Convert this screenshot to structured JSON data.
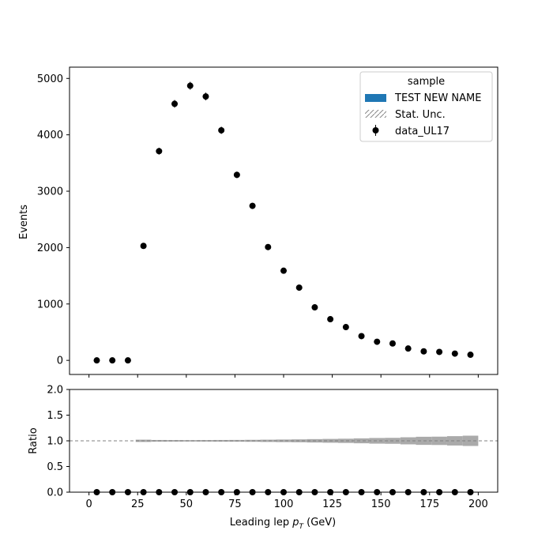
{
  "chart_data": {
    "type": "scatter",
    "x": [
      4,
      12,
      20,
      28,
      36,
      44,
      52,
      60,
      68,
      76,
      84,
      92,
      100,
      108,
      116,
      124,
      132,
      140,
      148,
      156,
      164,
      172,
      180,
      188,
      196
    ],
    "series": [
      {
        "name": "data_UL17",
        "values": [
          0,
          0,
          0,
          2030,
          3710,
          4550,
          4870,
          4680,
          4080,
          3290,
          2740,
          2010,
          1590,
          1290,
          940,
          730,
          590,
          430,
          330,
          300,
          210,
          160,
          150,
          120,
          100
        ],
        "ratio": [
          0,
          0,
          0,
          0,
          0,
          0,
          0,
          0,
          0,
          0,
          0,
          0,
          0,
          0,
          0,
          0,
          0,
          0,
          0,
          0,
          0,
          0,
          0,
          0,
          0
        ]
      }
    ],
    "stat_unc_band": {
      "x_edges": [
        24,
        32,
        40,
        48,
        56,
        64,
        72,
        80,
        88,
        96,
        104,
        112,
        120,
        128,
        136,
        144,
        152,
        160,
        168,
        176,
        184,
        192,
        200
      ],
      "half_width": [
        0.022,
        0.016,
        0.015,
        0.014,
        0.015,
        0.016,
        0.017,
        0.019,
        0.022,
        0.025,
        0.028,
        0.033,
        0.037,
        0.041,
        0.048,
        0.055,
        0.058,
        0.069,
        0.079,
        0.081,
        0.091,
        0.1
      ]
    },
    "xlabel_main": "Leading lep ",
    "xlabel_sym": "p",
    "xlabel_sub": "T",
    "xlabel_unit": " (GeV)",
    "ylabel": "Events",
    "ratio_ylabel": "Ratio",
    "xlim": [
      -10,
      210
    ],
    "ylim": [
      -250,
      5200
    ],
    "ratio_ylim": [
      0,
      2
    ],
    "ratio_reference": 1,
    "x_ticks": [
      "0",
      "25",
      "50",
      "75",
      "100",
      "125",
      "150",
      "175",
      "200"
    ],
    "y_ticks": [
      "0",
      "1000",
      "2000",
      "3000",
      "4000",
      "5000"
    ],
    "ratio_y_ticks": [
      "0.0",
      "0.5",
      "1.0",
      "1.5",
      "2.0"
    ],
    "grid": false,
    "legend_position": "top-right",
    "legend": {
      "title": "sample",
      "entries": [
        {
          "label": "TEST NEW NAME",
          "kind": "patch",
          "color": "#1f77b4"
        },
        {
          "label": "Stat. Unc.",
          "kind": "hatch",
          "color": "#888888"
        },
        {
          "label": "data_UL17",
          "kind": "errorbar-marker",
          "color": "#000000"
        }
      ]
    },
    "colors": {
      "band": "#aaaaaa",
      "reference_line": "#808080",
      "data": "#000000"
    }
  }
}
